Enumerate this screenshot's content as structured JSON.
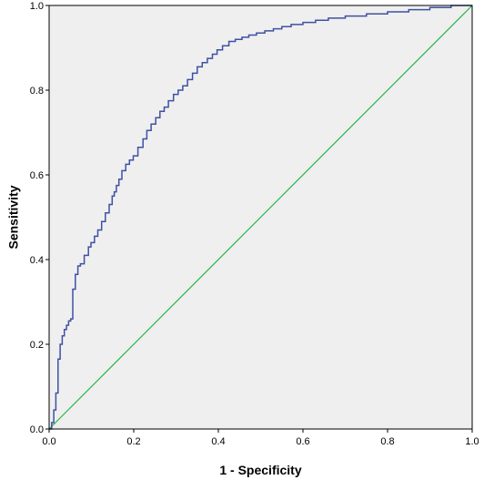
{
  "chart_data": {
    "type": "line",
    "title": "",
    "xlabel": "1 - Specificity",
    "ylabel": "Sensitivity",
    "xlim": [
      0,
      1
    ],
    "ylim": [
      0,
      1
    ],
    "x_ticks": [
      "0.0",
      "0.2",
      "0.4",
      "0.6",
      "0.8",
      "1.0"
    ],
    "y_ticks": [
      "0.0",
      "0.2",
      "0.4",
      "0.6",
      "0.8",
      "1.0"
    ],
    "grid": false,
    "legend": "none",
    "plot_background": "#efefef",
    "series": [
      {
        "color": "#3f51a3",
        "step": true,
        "x": [
          0.0,
          0.006,
          0.011,
          0.016,
          0.021,
          0.026,
          0.031,
          0.036,
          0.041,
          0.046,
          0.051,
          0.056,
          0.062,
          0.068,
          0.074,
          0.083,
          0.093,
          0.099,
          0.107,
          0.115,
          0.124,
          0.133,
          0.142,
          0.149,
          0.154,
          0.159,
          0.165,
          0.172,
          0.181,
          0.19,
          0.199,
          0.21,
          0.222,
          0.231,
          0.241,
          0.252,
          0.262,
          0.272,
          0.282,
          0.294,
          0.305,
          0.316,
          0.327,
          0.339,
          0.35,
          0.362,
          0.374,
          0.386,
          0.397,
          0.41,
          0.425,
          0.44,
          0.456,
          0.472,
          0.49,
          0.51,
          0.53,
          0.55,
          0.572,
          0.6,
          0.63,
          0.66,
          0.7,
          0.75,
          0.8,
          0.85,
          0.9,
          0.95,
          1.0
        ],
        "y": [
          0.0,
          0.015,
          0.045,
          0.085,
          0.165,
          0.2,
          0.22,
          0.235,
          0.245,
          0.255,
          0.26,
          0.33,
          0.365,
          0.385,
          0.39,
          0.41,
          0.43,
          0.44,
          0.455,
          0.47,
          0.49,
          0.51,
          0.53,
          0.55,
          0.56,
          0.575,
          0.59,
          0.61,
          0.625,
          0.635,
          0.645,
          0.665,
          0.685,
          0.705,
          0.72,
          0.735,
          0.75,
          0.76,
          0.775,
          0.79,
          0.8,
          0.81,
          0.825,
          0.84,
          0.855,
          0.865,
          0.875,
          0.885,
          0.895,
          0.905,
          0.915,
          0.92,
          0.925,
          0.93,
          0.935,
          0.94,
          0.945,
          0.95,
          0.955,
          0.96,
          0.965,
          0.97,
          0.975,
          0.98,
          0.985,
          0.99,
          0.995,
          1.0,
          1.0
        ]
      },
      {
        "color": "#2db34a",
        "step": false,
        "x": [
          0,
          1
        ],
        "y": [
          0,
          1
        ]
      }
    ]
  }
}
